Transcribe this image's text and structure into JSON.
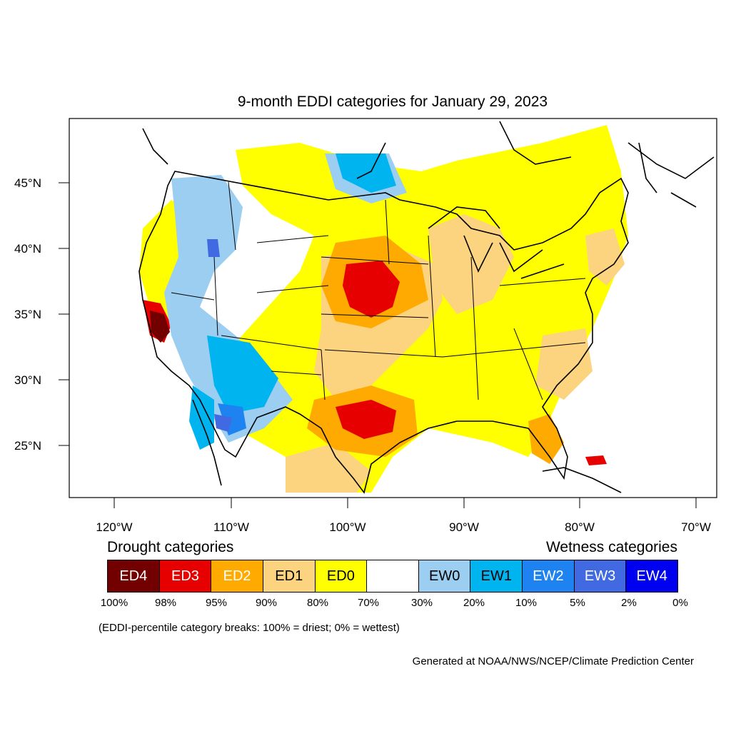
{
  "title": "9-month EDDI categories for January 29, 2023",
  "lat_labels": [
    "45°N",
    "40°N",
    "35°N",
    "30°N",
    "25°N"
  ],
  "lon_labels": [
    "120°W",
    "110°W",
    "100°W",
    "90°W",
    "80°W",
    "70°W"
  ],
  "legend": {
    "drought_heading": "Drought categories",
    "wetness_heading": "Wetness categories",
    "categories": [
      {
        "label": "ED4",
        "color": "#730000",
        "text_color": "#ffffff"
      },
      {
        "label": "ED3",
        "color": "#e60000",
        "text_color": "#ffffff"
      },
      {
        "label": "ED2",
        "color": "#ffaa00",
        "text_color": "#ffffff"
      },
      {
        "label": "ED1",
        "color": "#fcd37f",
        "text_color": "#000000"
      },
      {
        "label": "ED0",
        "color": "#ffff00",
        "text_color": "#000000"
      },
      {
        "label": "",
        "color": "#ffffff",
        "text_color": "#000000"
      },
      {
        "label": "EW0",
        "color": "#9bcef0",
        "text_color": "#000000"
      },
      {
        "label": "EW1",
        "color": "#00b4f0",
        "text_color": "#000000"
      },
      {
        "label": "EW2",
        "color": "#1e82f0",
        "text_color": "#ffffff"
      },
      {
        "label": "EW3",
        "color": "#4169e1",
        "text_color": "#ffffff"
      },
      {
        "label": "EW4",
        "color": "#0000f0",
        "text_color": "#ffffff"
      }
    ],
    "percent_breaks": [
      "100%",
      "98%",
      "95%",
      "90%",
      "80%",
      "70%",
      "30%",
      "20%",
      "10%",
      "5%",
      "2%",
      "0%"
    ]
  },
  "note": "(EDDI-percentile category breaks: 100% = driest; 0% = wettest)",
  "credit": "Generated at NOAA/NWS/NCEP/Climate Prediction Center"
}
